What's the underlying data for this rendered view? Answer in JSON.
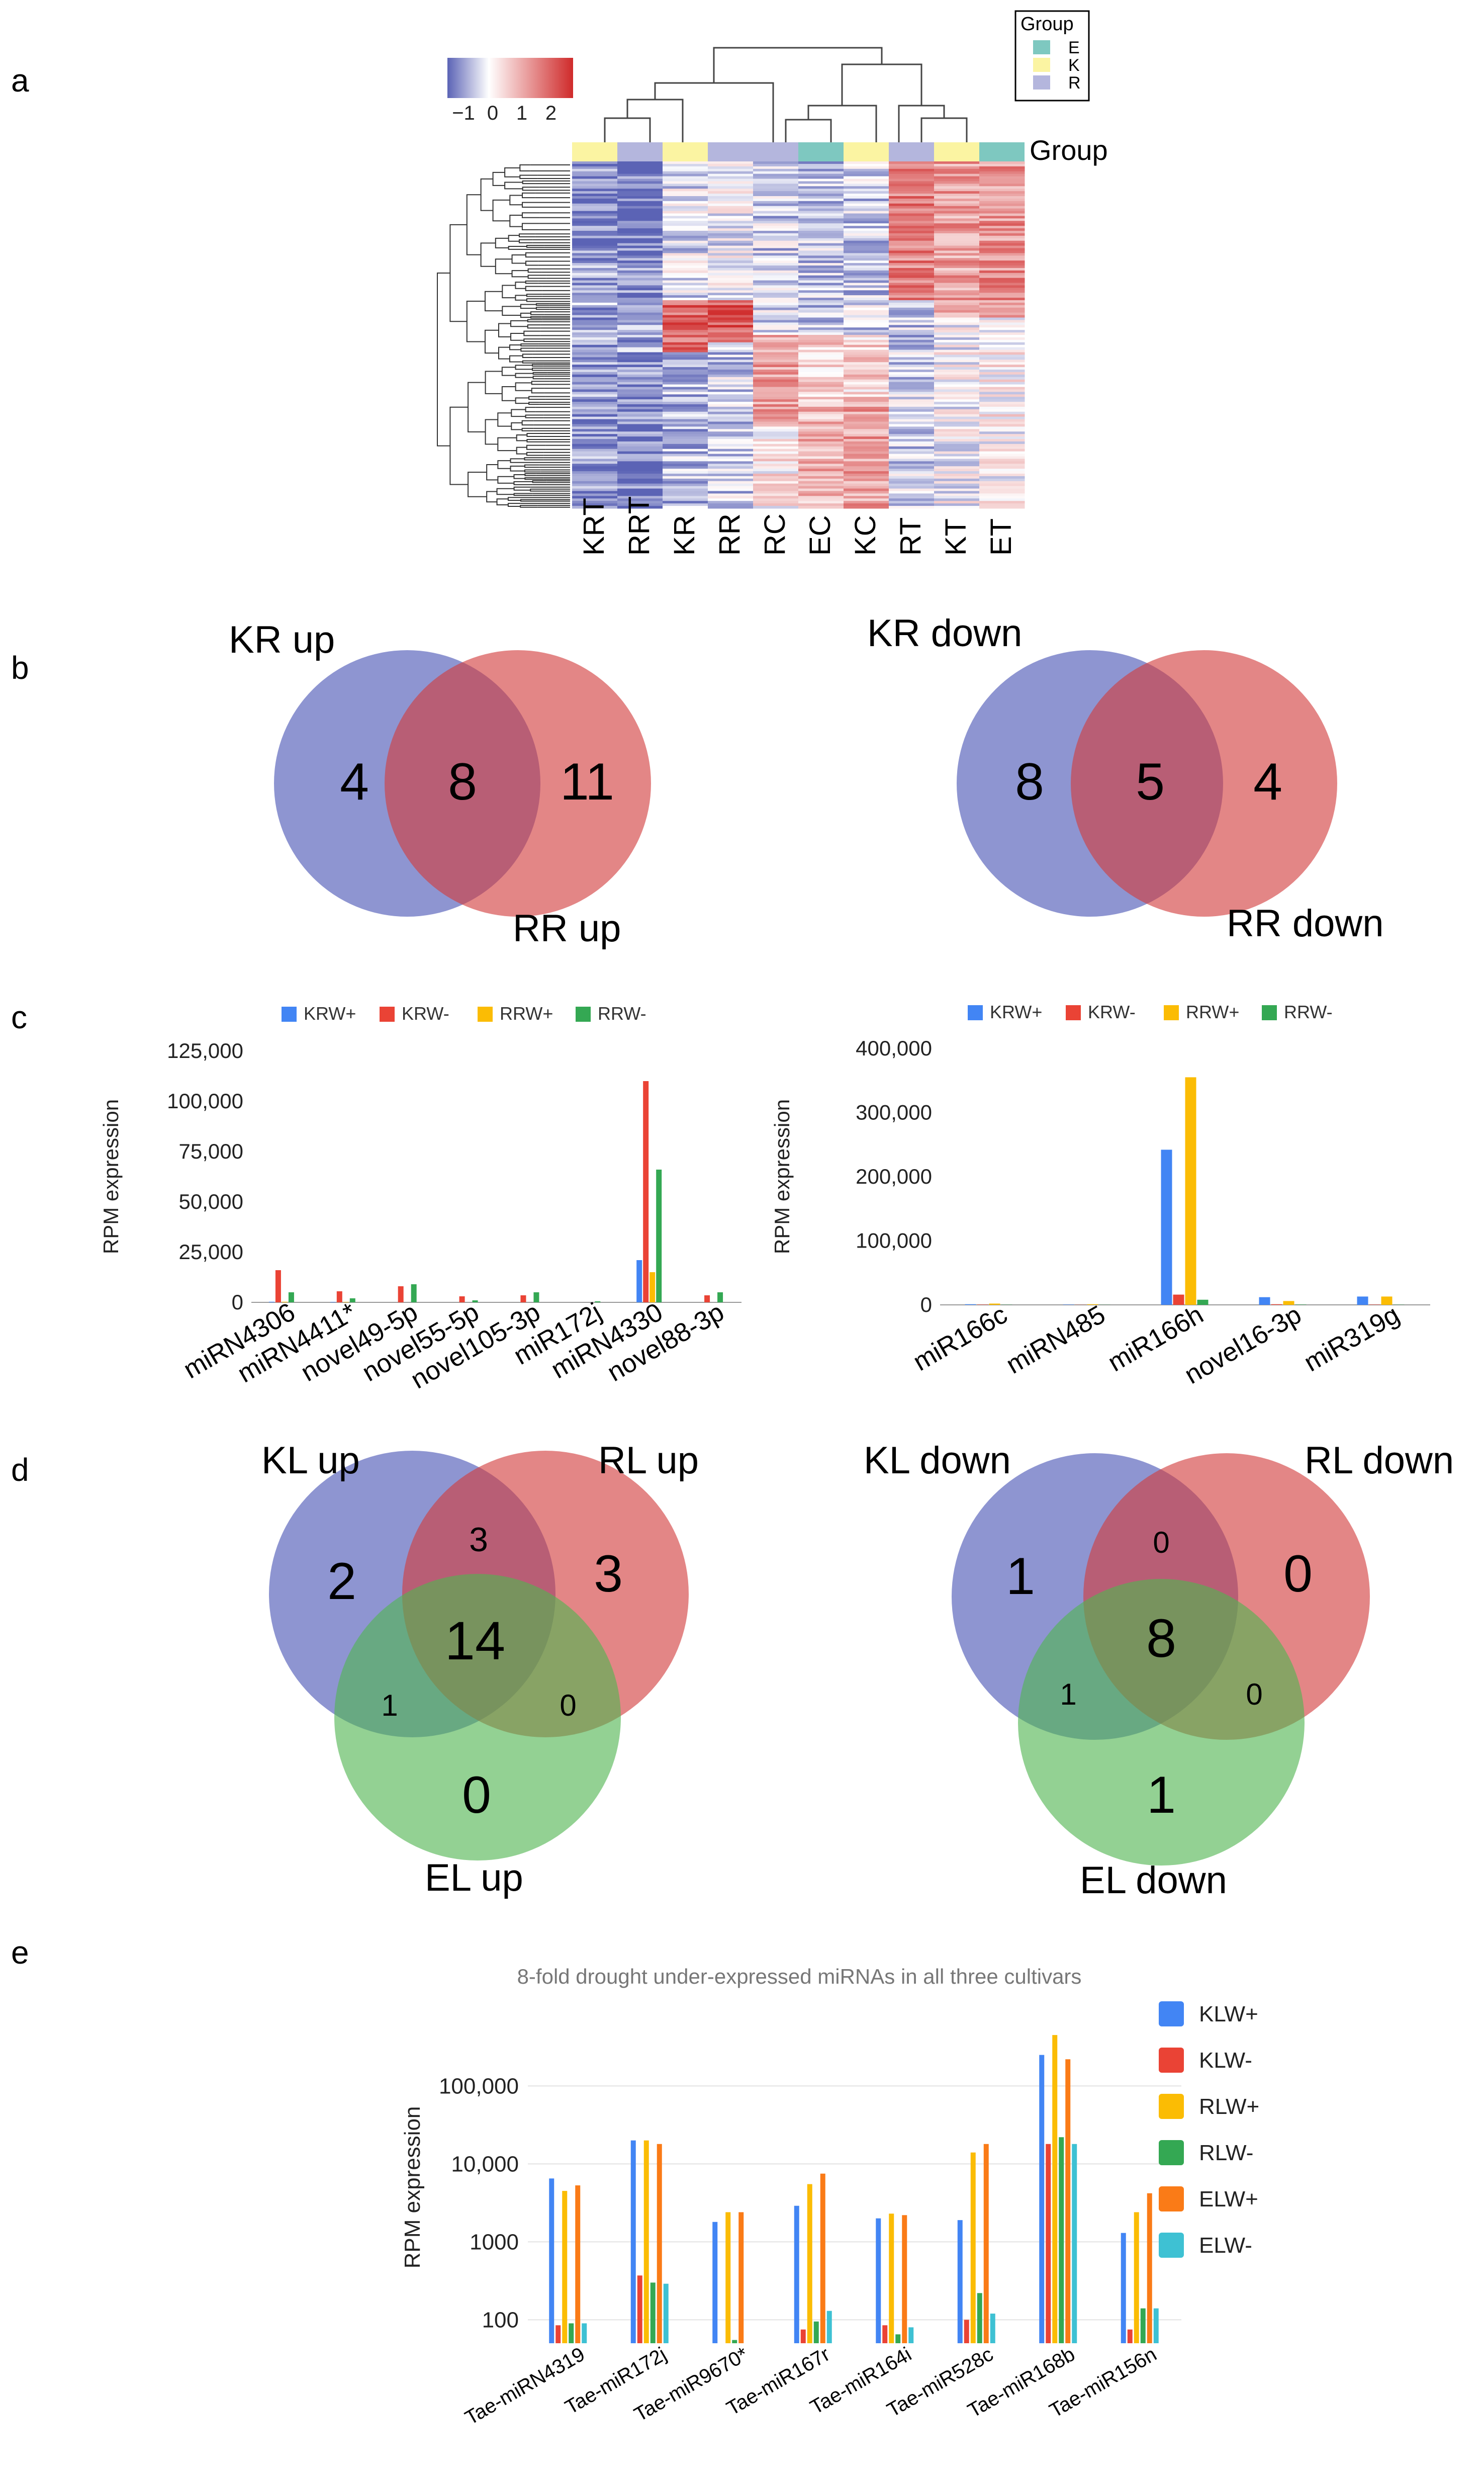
{
  "panels": [
    "a",
    "b",
    "c",
    "d",
    "e"
  ],
  "heatmap": {
    "colorbar_ticks": [
      "−1",
      "0",
      "1",
      "2"
    ],
    "group_legend_title": "Group",
    "groups": [
      {
        "label": "E",
        "color": "#7ec8c0"
      },
      {
        "label": "K",
        "color": "#fbf4a2"
      },
      {
        "label": "R",
        "color": "#b4b6dd"
      }
    ],
    "annotation_row_label": "Group",
    "columns": [
      "KRT",
      "RRT",
      "KR",
      "RR",
      "RC",
      "EC",
      "KC",
      "RT",
      "KT",
      "ET"
    ],
    "column_groups": [
      "K",
      "R",
      "K",
      "R",
      "R",
      "E",
      "K",
      "R",
      "K",
      "E"
    ],
    "scale": {
      "low": "#5b63b5",
      "mid": "#ffffff",
      "high": "#cf2a2a"
    }
  },
  "venn_b": [
    {
      "label_a": "KR up",
      "label_b": "RR up",
      "only_a": "4",
      "both": "8",
      "only_b": "11"
    },
    {
      "label_a": "KR down",
      "label_b": "RR down",
      "only_a": "8",
      "both": "5",
      "only_b": "4"
    }
  ],
  "venn_d": [
    {
      "labels": [
        "KL up",
        "RL up",
        "EL up"
      ],
      "only_a": "2",
      "ab": "3",
      "only_b": "3",
      "abc": "14",
      "ac": "1",
      "bc": "0",
      "only_c": "0"
    },
    {
      "labels": [
        "KL down",
        "RL down",
        "EL down"
      ],
      "only_a": "1",
      "ab": "0",
      "only_b": "0",
      "abc": "8",
      "ac": "1",
      "bc": "0",
      "only_c": "1"
    }
  ],
  "chart_data": [
    {
      "type": "heatmap",
      "columns": [
        "KRT",
        "RRT",
        "KR",
        "RR",
        "RC",
        "EC",
        "KC",
        "RT",
        "KT",
        "ET"
      ],
      "legend": [
        "E",
        "K",
        "R"
      ],
      "colorbar_range": [
        -1,
        2
      ]
    },
    {
      "type": "bar",
      "title": "",
      "ylabel": "RPM expression",
      "ylim": [
        0,
        125000
      ],
      "yticks": [
        0,
        25000,
        50000,
        75000,
        100000,
        125000
      ],
      "ytick_labels": [
        "0",
        "25,000",
        "50,000",
        "75,000",
        "100,000",
        "125,000"
      ],
      "categories": [
        "miRN4306",
        "miRN4411*",
        "novel49-5p",
        "novel55-5p",
        "novel105-3p",
        "miR172j",
        "miRN4330",
        "novel88-3p"
      ],
      "series": [
        {
          "name": "KRW+",
          "color": "#4285f4",
          "values": [
            300,
            200,
            0,
            0,
            0,
            0,
            21000,
            0
          ]
        },
        {
          "name": "KRW-",
          "color": "#ea4335",
          "values": [
            16000,
            5500,
            8000,
            3000,
            3500,
            0,
            110000,
            3500
          ]
        },
        {
          "name": "RRW+",
          "color": "#fbbc04",
          "values": [
            300,
            200,
            0,
            0,
            0,
            0,
            15000,
            0
          ]
        },
        {
          "name": "RRW-",
          "color": "#34a853",
          "values": [
            5000,
            2000,
            9000,
            1000,
            5000,
            500,
            66000,
            5000
          ]
        }
      ]
    },
    {
      "type": "bar",
      "title": "",
      "ylabel": "RPM expression",
      "ylim": [
        0,
        400000
      ],
      "yticks": [
        0,
        100000,
        200000,
        300000,
        400000
      ],
      "ytick_labels": [
        "0",
        "100,000",
        "200,000",
        "300,000",
        "400,000"
      ],
      "categories": [
        "miR166c",
        "miRN485",
        "miR166h",
        "novel16-3p",
        "miR319g"
      ],
      "series": [
        {
          "name": "KRW+",
          "color": "#4285f4",
          "values": [
            1000,
            500,
            242000,
            12000,
            13000
          ]
        },
        {
          "name": "KRW-",
          "color": "#ea4335",
          "values": [
            500,
            200,
            16000,
            1000,
            500
          ]
        },
        {
          "name": "RRW+",
          "color": "#fbbc04",
          "values": [
            2000,
            1000,
            355000,
            6000,
            13000
          ]
        },
        {
          "name": "RRW-",
          "color": "#34a853",
          "values": [
            300,
            200,
            8000,
            500,
            300
          ]
        }
      ]
    },
    {
      "type": "bar",
      "scale": "log",
      "title": "8-fold drought under-expressed miRNAs in all three cultivars",
      "ylabel": "RPM expression",
      "ylim": [
        50,
        500000
      ],
      "yticks": [
        100,
        1000,
        10000,
        100000
      ],
      "ytick_labels": [
        "100",
        "1000",
        "10,000",
        "100,000"
      ],
      "categories": [
        "Tae-miRN4319",
        "Tae-miR172j",
        "Tae-miR9670*",
        "Tae-miR167r",
        "Tae-miR164i",
        "Tae-miR528c",
        "Tae-miR168b",
        "Tae-miR156n"
      ],
      "series": [
        {
          "name": "KLW+",
          "color": "#4285f4",
          "values": [
            6500,
            20000,
            1800,
            2900,
            2000,
            1900,
            250000,
            1300
          ]
        },
        {
          "name": "KLW-",
          "color": "#ea4335",
          "values": [
            85,
            370,
            0,
            75,
            85,
            100,
            18000,
            75
          ]
        },
        {
          "name": "RLW+",
          "color": "#fbbc04",
          "values": [
            4500,
            20000,
            2400,
            5500,
            2300,
            14000,
            450000,
            2400
          ]
        },
        {
          "name": "RLW-",
          "color": "#34a853",
          "values": [
            90,
            300,
            55,
            95,
            65,
            220,
            22000,
            140
          ]
        },
        {
          "name": "ELW+",
          "color": "#fa7b17",
          "values": [
            5300,
            18000,
            2400,
            7500,
            2200,
            18000,
            220000,
            4200
          ]
        },
        {
          "name": "ELW-",
          "color": "#3ec1d3",
          "values": [
            90,
            290,
            45,
            130,
            80,
            120,
            18000,
            140
          ]
        }
      ]
    }
  ]
}
